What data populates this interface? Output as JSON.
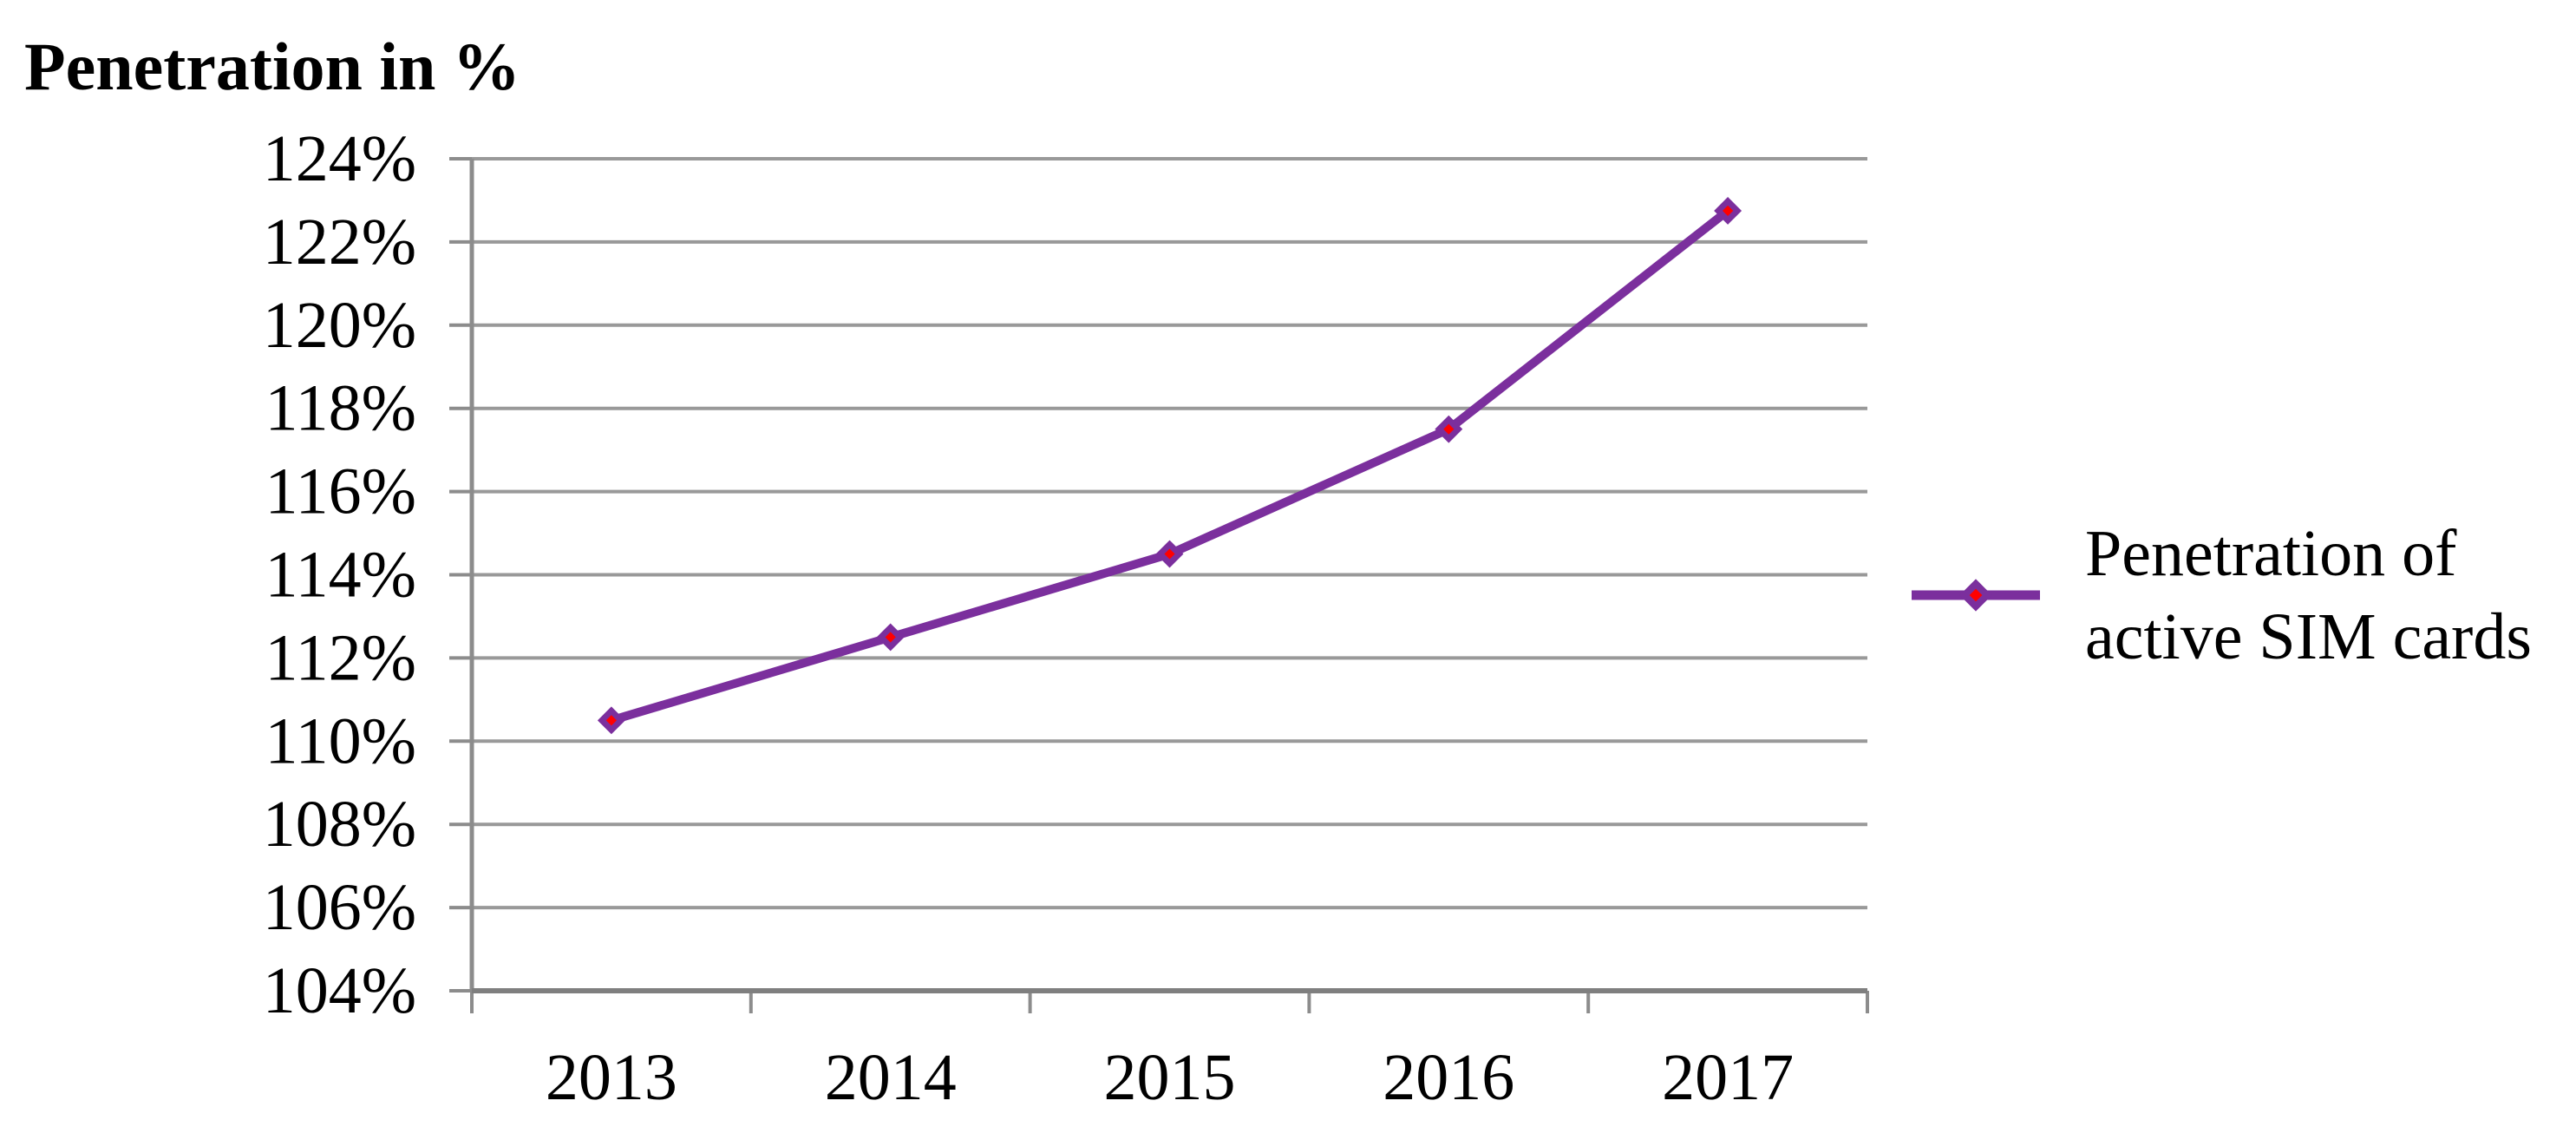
{
  "page": {
    "background": "#ffffff"
  },
  "chart_data": {
    "type": "line",
    "title": "Penetration in %",
    "categories": [
      "2013",
      "2014",
      "2015",
      "2016",
      "2017"
    ],
    "series": [
      {
        "name": "Penetration of active SIM cards",
        "values": [
          110.5,
          112.5,
          114.5,
          117.5,
          122.75
        ],
        "line_color": "#7B2F9D",
        "marker": "diamond",
        "marker_fill": "#FF0000",
        "marker_outline": "#7B2F9D"
      }
    ],
    "xlabel": "",
    "ylabel": "Penetration in %",
    "ylim": [
      104,
      124
    ],
    "ytick_step": 2,
    "ytick_labels": [
      "124%",
      "122%",
      "120%",
      "118%",
      "116%",
      "114%",
      "112%",
      "110%",
      "108%",
      "106%",
      "104%"
    ],
    "grid": "horizontal",
    "gridline_color": "#999999",
    "axis_color": "#7F7F7F",
    "tick_color": "#8C8C8C",
    "text_color": "#000000",
    "legend_position": "right",
    "legend_label": "Penetration of active SIM cards"
  }
}
